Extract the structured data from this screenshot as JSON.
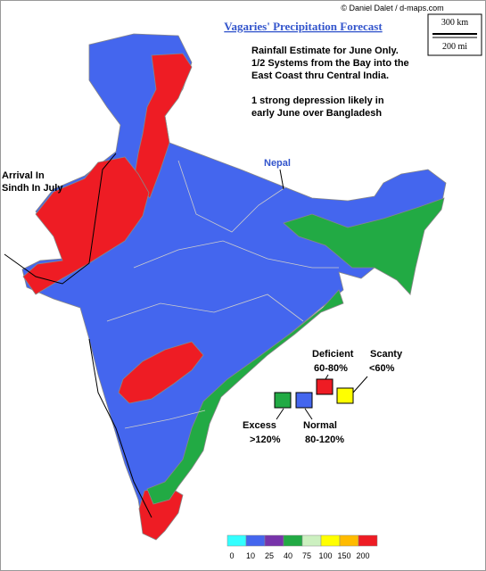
{
  "credit": "© Daniel Dalet / d-maps.com",
  "scale_bar": {
    "km": "300 km",
    "mi": "200 mi"
  },
  "title": "Vagaries' Precipitation Forecast",
  "notes": [
    "Rainfall Estimate for June Only.",
    "1/2 Systems from the Bay into the",
    "East Coast thru Central India.",
    "1 strong depression likely in",
    "early June over Bangladesh"
  ],
  "annotations": {
    "sindh": [
      "Arrival In",
      "Sindh In July"
    ],
    "nepal": "Nepal"
  },
  "legend": [
    {
      "name": "Excess",
      "range": ">120%",
      "color": "#22aa44"
    },
    {
      "name": "Normal",
      "range": "80-120%",
      "color": "#4466ee"
    },
    {
      "name": "Deficient",
      "range": "60-80%",
      "color": "#ee1c24"
    },
    {
      "name": "Scanty",
      "range": "<60%",
      "color": "#ffff00"
    }
  ],
  "color_scale": {
    "colors": [
      "#33ffff",
      "#4466ee",
      "#7733aa",
      "#22aa44",
      "#ccf0c0",
      "#ffff00",
      "#ffbb00",
      "#ee1c24"
    ],
    "labels": [
      "0",
      "10",
      "25",
      "40",
      "75",
      "100",
      "150",
      "200"
    ]
  }
}
